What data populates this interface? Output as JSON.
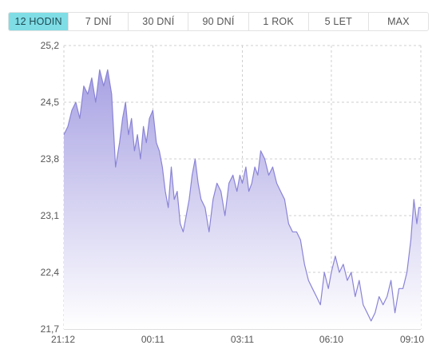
{
  "tabs": [
    {
      "label": "12 HODIN",
      "active": true
    },
    {
      "label": "7 DNÍ",
      "active": false
    },
    {
      "label": "30 DNÍ",
      "active": false
    },
    {
      "label": "90 DNÍ",
      "active": false
    },
    {
      "label": "1 ROK",
      "active": false
    },
    {
      "label": "5 LET",
      "active": false
    },
    {
      "label": "MAX",
      "active": false
    }
  ],
  "colors": {
    "line": "#8a84d6",
    "fill_top": "#a8a2e3",
    "fill_bottom": "#ffffff",
    "grid": "#cfcfcf",
    "active_tab": "#7fdde6"
  },
  "chart_data": {
    "type": "area",
    "title": "",
    "xlabel": "",
    "ylabel": "",
    "ylim": [
      21.7,
      25.2
    ],
    "grid": true,
    "y_ticks": [
      "25,2",
      "24,5",
      "23,8",
      "23,1",
      "22,4",
      "21,7"
    ],
    "x_ticks": [
      "21:12",
      "00:11",
      "03:11",
      "06:10",
      "09:10"
    ],
    "x_range": [
      "21:12",
      "09:10"
    ],
    "series": [
      {
        "x": [
          "21:12",
          "21:20",
          "21:28",
          "21:36",
          "21:44",
          "21:52",
          "22:00",
          "22:08",
          "22:16",
          "22:24",
          "22:32",
          "22:40",
          "22:48",
          "22:56",
          "23:04",
          "23:10",
          "23:16",
          "23:22",
          "23:28",
          "23:34",
          "23:40",
          "23:46",
          "23:52",
          "23:58",
          "00:04",
          "00:11",
          "00:18",
          "00:24",
          "00:30",
          "00:36",
          "00:42",
          "00:48",
          "00:54",
          "01:00",
          "01:06",
          "01:12",
          "01:18",
          "01:24",
          "01:30",
          "01:36",
          "01:42",
          "01:48",
          "01:56",
          "02:04",
          "02:12",
          "02:20",
          "02:28",
          "02:36",
          "02:44",
          "02:52",
          "03:00",
          "03:06",
          "03:11",
          "03:18",
          "03:24",
          "03:30",
          "03:36",
          "03:42",
          "03:48",
          "03:56",
          "04:04",
          "04:12",
          "04:20",
          "04:28",
          "04:36",
          "04:44",
          "04:52",
          "05:00",
          "05:08",
          "05:16",
          "05:24",
          "05:32",
          "05:40",
          "05:48",
          "05:56",
          "06:04",
          "06:10",
          "06:18",
          "06:26",
          "06:34",
          "06:42",
          "06:50",
          "06:58",
          "07:06",
          "07:14",
          "07:22",
          "07:30",
          "07:38",
          "07:46",
          "07:54",
          "08:02",
          "08:10",
          "08:18",
          "08:26",
          "08:34",
          "08:42",
          "08:50",
          "08:56",
          "09:02",
          "09:06",
          "09:10"
        ],
        "values": [
          24.1,
          24.2,
          24.4,
          24.5,
          24.3,
          24.7,
          24.6,
          24.8,
          24.5,
          24.9,
          24.7,
          24.9,
          24.6,
          23.7,
          24.0,
          24.3,
          24.5,
          24.1,
          24.3,
          23.9,
          24.1,
          23.8,
          24.2,
          24.0,
          24.3,
          24.4,
          24.0,
          23.9,
          23.7,
          23.4,
          23.2,
          23.7,
          23.3,
          23.4,
          23.0,
          22.9,
          23.1,
          23.3,
          23.6,
          23.8,
          23.5,
          23.3,
          23.2,
          22.9,
          23.3,
          23.5,
          23.4,
          23.1,
          23.5,
          23.6,
          23.4,
          23.6,
          23.5,
          23.7,
          23.4,
          23.5,
          23.7,
          23.6,
          23.9,
          23.8,
          23.6,
          23.7,
          23.5,
          23.4,
          23.3,
          23.0,
          22.9,
          22.9,
          22.8,
          22.5,
          22.3,
          22.2,
          22.1,
          22.0,
          22.4,
          22.2,
          22.4,
          22.6,
          22.4,
          22.5,
          22.3,
          22.4,
          22.1,
          22.3,
          22.0,
          21.9,
          21.8,
          21.9,
          22.1,
          22.0,
          22.1,
          22.3,
          21.9,
          22.2,
          22.2,
          22.4,
          22.8,
          23.3,
          23.0,
          23.2,
          23.2
        ]
      }
    ]
  }
}
